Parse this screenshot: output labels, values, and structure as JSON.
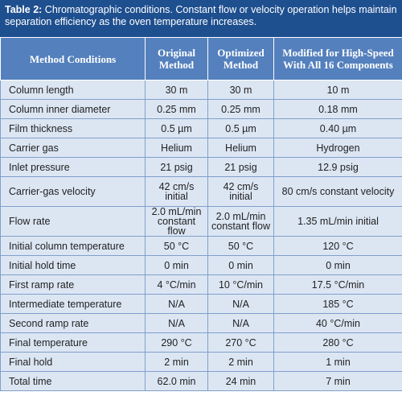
{
  "caption": {
    "label": "Table 2:",
    "text": "Chromatographic conditions. Constant flow or velocity operation helps maintain separation efficiency as the oven temperature increases."
  },
  "table": {
    "header": [
      "Method Conditions",
      "Original Method",
      "Optimized Method",
      "Modified for High-Speed With All 16 Components"
    ],
    "rows": [
      [
        "Column length",
        "30 m",
        "30 m",
        "10 m"
      ],
      [
        "Column inner diameter",
        "0.25 mm",
        "0.25 mm",
        "0.18 mm"
      ],
      [
        "Film thickness",
        "0.5 µm",
        "0.5 µm",
        "0.40 µm"
      ],
      [
        "Carrier gas",
        "Helium",
        "Helium",
        "Hydrogen"
      ],
      [
        "Inlet pressure",
        "21 psig",
        "21 psig",
        "12.9 psig"
      ],
      [
        "Carrier-gas velocity",
        "42 cm/s initial",
        "42 cm/s initial",
        "80 cm/s constant velocity"
      ],
      [
        "Flow rate",
        "2.0 mL/min constant flow",
        "2.0 mL/min constant flow",
        "1.35 mL/min initial"
      ],
      [
        "Initial column temperature",
        "50 °C",
        "50 °C",
        "120 °C"
      ],
      [
        "Initial hold time",
        "0 min",
        "0 min",
        "0 min"
      ],
      [
        "First ramp rate",
        "4 °C/min",
        "10 °C/min",
        "17.5 °C/min"
      ],
      [
        "Intermediate temperature",
        "N/A",
        "N/A",
        "185 °C"
      ],
      [
        "Second ramp rate",
        "N/A",
        "N/A",
        "40 °C/min"
      ],
      [
        "Final temperature",
        "290 °C",
        "270 °C",
        "280 °C"
      ],
      [
        "Final hold",
        "2 min",
        "2 min",
        "1 min"
      ],
      [
        "Total time",
        "62.0 min",
        "24 min",
        "7 min"
      ]
    ]
  }
}
